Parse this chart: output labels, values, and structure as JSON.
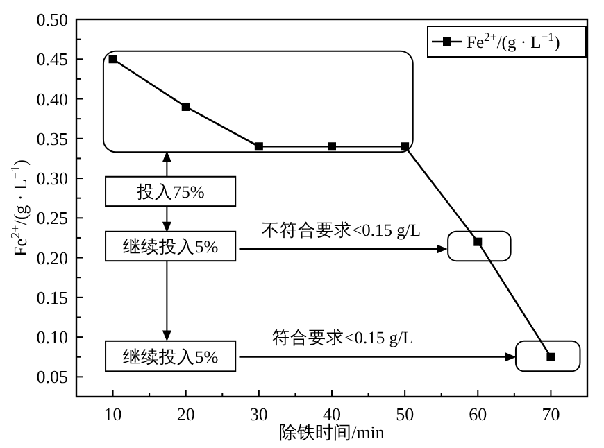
{
  "chart_data": {
    "type": "line",
    "xlabel": "除铁时间/min",
    "ylabel": "Fe$^{2+}$/(g · L$^{−1}$)",
    "x": [
      10,
      20,
      30,
      40,
      50,
      60,
      70
    ],
    "series": [
      {
        "name": "Fe$^{2+}$/(g · L$^{−1}$)",
        "color": "#000000",
        "values": [
          0.45,
          0.39,
          0.34,
          0.34,
          0.34,
          0.22,
          0.075
        ]
      }
    ],
    "xlim": [
      5,
      75
    ],
    "xticks": [
      10,
      20,
      30,
      40,
      50,
      60,
      70
    ],
    "ylim": [
      0.025,
      0.5
    ],
    "yticks": [
      {
        "value": 0.05,
        "label": "0.05"
      },
      {
        "value": 0.1,
        "label": "0.10"
      },
      {
        "value": 0.15,
        "label": "0.15"
      },
      {
        "value": 0.2,
        "label": "0.20"
      },
      {
        "value": 0.25,
        "label": "0.25"
      },
      {
        "value": 0.3,
        "label": "0.30"
      },
      {
        "value": 0.35,
        "label": "0.35"
      },
      {
        "value": 0.4,
        "label": "0.40"
      },
      {
        "value": 0.45,
        "label": "0.45"
      },
      {
        "value": 0.5,
        "label": "0.50"
      }
    ],
    "marker": "square",
    "line_style": "solid",
    "grid": false,
    "legend": "top right",
    "annotations": [
      "投入75%",
      "继续投入5%",
      "继续投入5%",
      "不符合要求<0.15 g/L",
      "符合要求<0.15 g/L"
    ]
  }
}
